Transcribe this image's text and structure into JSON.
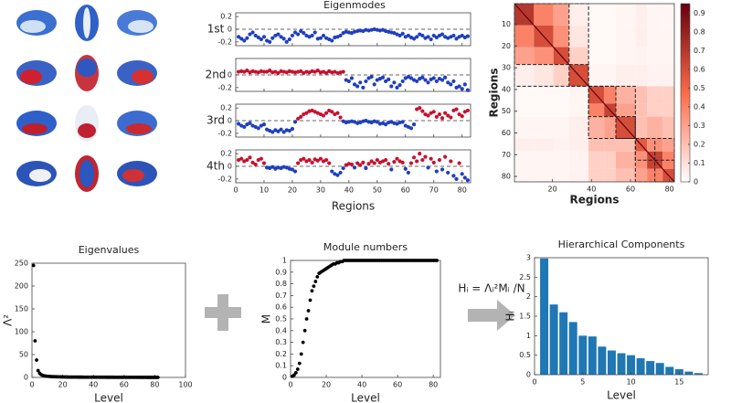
{
  "chart_data": [
    {
      "type": "eigenmodes",
      "title": "Eigenmodes",
      "xlabel": "Regions",
      "x": [
        1,
        2,
        3,
        4,
        5,
        6,
        7,
        8,
        9,
        10,
        11,
        12,
        13,
        14,
        15,
        16,
        17,
        18,
        19,
        20,
        21,
        22,
        23,
        24,
        25,
        26,
        27,
        28,
        29,
        30,
        31,
        32,
        33,
        34,
        35,
        36,
        37,
        38,
        39,
        40,
        41,
        42,
        43,
        44,
        45,
        46,
        47,
        48,
        49,
        50,
        51,
        52,
        53,
        54,
        55,
        56,
        57,
        58,
        59,
        60,
        61,
        62,
        63,
        64,
        65,
        66,
        67,
        68,
        69,
        70,
        71,
        72,
        73,
        74,
        75,
        76,
        77,
        78,
        79,
        80,
        81,
        82
      ],
      "xlim": [
        0,
        83
      ],
      "xticks": [
        0,
        10,
        20,
        30,
        40,
        50,
        60,
        70,
        80
      ],
      "ylim": [
        -0.26,
        0.26
      ],
      "positive_color": "#c8102e",
      "negative_color": "#1f3fbf",
      "zero_line": true,
      "series": [
        {
          "name": "1st",
          "yticks": [
            -0.2,
            0,
            0.2
          ],
          "values": [
            -0.12,
            -0.15,
            -0.18,
            -0.14,
            -0.08,
            -0.05,
            -0.1,
            -0.13,
            -0.16,
            -0.12,
            -0.18,
            -0.2,
            -0.14,
            -0.1,
            -0.08,
            -0.12,
            -0.15,
            -0.2,
            -0.16,
            -0.1,
            -0.05,
            -0.08,
            -0.03,
            -0.06,
            -0.1,
            -0.12,
            -0.1,
            -0.05,
            -0.15,
            -0.14,
            -0.1,
            -0.14,
            -0.16,
            -0.18,
            -0.13,
            -0.12,
            -0.1,
            -0.06,
            -0.04,
            -0.05,
            -0.06,
            -0.04,
            -0.03,
            -0.02,
            -0.03,
            -0.01,
            -0.02,
            -0.01,
            0,
            -0.01,
            -0.02,
            -0.01,
            -0.03,
            -0.04,
            -0.05,
            -0.06,
            -0.08,
            -0.1,
            -0.07,
            -0.12,
            -0.1,
            -0.13,
            -0.15,
            -0.12,
            -0.08,
            -0.1,
            -0.14,
            -0.12,
            -0.16,
            -0.1,
            -0.13,
            -0.1,
            -0.08,
            -0.12,
            -0.14,
            -0.12,
            -0.1,
            -0.15,
            -0.12,
            -0.1,
            -0.13,
            -0.11
          ]
        },
        {
          "name": "2nd",
          "yticks": [
            -0.2,
            0
          ],
          "values": [
            0.05,
            0.06,
            0.05,
            0.07,
            0.04,
            0.06,
            0.05,
            0.04,
            0.06,
            0.05,
            0.05,
            0.07,
            0.04,
            0.05,
            0.03,
            0.06,
            0.05,
            0.04,
            0.06,
            0.05,
            0.04,
            0.05,
            0.06,
            0.03,
            0.05,
            0.04,
            0.06,
            0.05,
            0.07,
            0.04,
            0.05,
            0.03,
            0.06,
            0.04,
            0.05,
            0.03,
            0.04,
            0.05,
            -0.08,
            -0.1,
            -0.05,
            -0.15,
            -0.18,
            -0.12,
            -0.2,
            -0.1,
            -0.05,
            -0.03,
            -0.15,
            -0.08,
            -0.06,
            -0.04,
            -0.1,
            -0.07,
            -0.18,
            -0.12,
            -0.2,
            -0.16,
            -0.1,
            -0.05,
            -0.03,
            -0.05,
            -0.08,
            -0.1,
            -0.06,
            -0.04,
            -0.08,
            -0.12,
            -0.07,
            -0.05,
            -0.1,
            -0.06,
            -0.08,
            -0.04,
            -0.12,
            -0.15,
            -0.1,
            -0.2,
            -0.18,
            -0.22,
            -0.15,
            -0.24
          ]
        },
        {
          "name": "3rd",
          "yticks": [
            -0.2,
            0,
            0.2
          ],
          "values": [
            -0.05,
            -0.08,
            -0.1,
            -0.06,
            -0.04,
            -0.08,
            -0.1,
            -0.12,
            -0.08,
            -0.06,
            -0.14,
            -0.16,
            -0.18,
            -0.15,
            -0.17,
            -0.14,
            -0.18,
            -0.15,
            -0.16,
            -0.13,
            -0.02,
            0.03,
            0.06,
            0.1,
            0.12,
            0.15,
            0.16,
            0.14,
            0.12,
            0.1,
            0.08,
            0.12,
            0.16,
            0.14,
            0.1,
            0.12,
            0.05,
            -0.01,
            -0.03,
            -0.02,
            -0.01,
            -0.02,
            -0.04,
            -0.03,
            -0.01,
            0,
            -0.02,
            -0.03,
            -0.01,
            -0.02,
            -0.05,
            -0.04,
            -0.06,
            -0.03,
            -0.02,
            -0.04,
            -0.05,
            -0.03,
            -0.02,
            -0.08,
            -0.1,
            -0.12,
            -0.06,
            0.18,
            0.2,
            0.15,
            0.1,
            0.08,
            0.12,
            0.14,
            0.06,
            0.1,
            0.04,
            0.12,
            0.08,
            0.05,
            0.16,
            0.18,
            0.1,
            0.07,
            0.14,
            0.16
          ]
        },
        {
          "name": "4th",
          "yticks": [
            -0.2,
            0,
            0.2
          ],
          "values": [
            0.1,
            0.12,
            0.08,
            0.1,
            0.14,
            0.06,
            0.03,
            0.1,
            0.12,
            0.05,
            -0.02,
            -0.03,
            -0.01,
            -0.04,
            -0.02,
            -0.03,
            -0.01,
            -0.02,
            -0.04,
            -0.05,
            -0.08,
            0.05,
            0.1,
            0.12,
            0.08,
            0.1,
            0.06,
            0.11,
            0.09,
            0.12,
            0.08,
            0.1,
            0.05,
            -0.08,
            -0.12,
            -0.14,
            -0.1,
            -0.03,
            0.02,
            0.04,
            0.03,
            -0.02,
            0.05,
            0.02,
            0.06,
            -0.03,
            0.04,
            0.08,
            0.05,
            0.1,
            0.06,
            0.08,
            0.1,
            0.04,
            -0.05,
            0.07,
            0.12,
            0.08,
            0.06,
            -0.04,
            -0.1,
            0.05,
            0.14,
            0.08,
            0.2,
            0.1,
            0.15,
            -0.02,
            0.12,
            0.06,
            -0.08,
            0.1,
            -0.05,
            0.15,
            -0.1,
            0.08,
            -0.15,
            -0.2,
            0.05,
            -0.12,
            -0.18,
            -0.22
          ]
        }
      ]
    },
    {
      "type": "heatmap",
      "xlabel": "Regions",
      "ylabel": "Regions",
      "edges": [
        0.5,
        10.5,
        20.5,
        28.5,
        38.5,
        46.5,
        52.5,
        62.5,
        68.5,
        76.5,
        82.5
      ],
      "values": [
        [
          0.7,
          0.4,
          0.3,
          0.05,
          0.02,
          0.02,
          0.03,
          0.05,
          0.03,
          0.03
        ],
        [
          0.4,
          0.6,
          0.35,
          0.08,
          0.02,
          0.02,
          0.03,
          0.05,
          0.03,
          0.03
        ],
        [
          0.3,
          0.35,
          0.6,
          0.15,
          0.02,
          0.02,
          0.03,
          0.04,
          0.03,
          0.03
        ],
        [
          0.05,
          0.08,
          0.15,
          0.6,
          0.03,
          0.03,
          0.05,
          0.05,
          0.04,
          0.04
        ],
        [
          0.02,
          0.02,
          0.02,
          0.03,
          0.6,
          0.4,
          0.25,
          0.2,
          0.15,
          0.15
        ],
        [
          0.02,
          0.02,
          0.02,
          0.03,
          0.4,
          0.65,
          0.3,
          0.2,
          0.15,
          0.15
        ],
        [
          0.03,
          0.03,
          0.03,
          0.05,
          0.25,
          0.3,
          0.6,
          0.2,
          0.25,
          0.2
        ],
        [
          0.05,
          0.05,
          0.04,
          0.05,
          0.2,
          0.2,
          0.2,
          0.55,
          0.35,
          0.3
        ],
        [
          0.03,
          0.03,
          0.03,
          0.04,
          0.15,
          0.15,
          0.25,
          0.35,
          0.65,
          0.4
        ],
        [
          0.03,
          0.03,
          0.03,
          0.04,
          0.15,
          0.15,
          0.2,
          0.3,
          0.4,
          0.6
        ]
      ],
      "module_boxes": [
        [
          0.5,
          38.5
        ],
        [
          0.5,
          28.5
        ],
        [
          28.5,
          38.5
        ],
        [
          38.5,
          62.5
        ],
        [
          38.5,
          52.5
        ],
        [
          52.5,
          62.5
        ],
        [
          62.5,
          82.5
        ],
        [
          62.5,
          72.5
        ],
        [
          72.5,
          82.5
        ]
      ],
      "xlim": [
        0.5,
        82.5
      ],
      "ylim": [
        0.5,
        82.5
      ],
      "xticks": [
        20,
        40,
        60,
        80
      ],
      "yticks": [
        10,
        20,
        30,
        40,
        50,
        60,
        70,
        80
      ],
      "clim": [
        0,
        0.95
      ],
      "cticks": [
        0,
        0.1,
        0.2,
        0.3,
        0.4,
        0.5,
        0.6,
        0.7,
        0.8,
        0.9
      ],
      "colors": [
        "#ffffff",
        "#fb6a4a",
        "#67000d"
      ]
    },
    {
      "type": "scatter",
      "title": "Eigenvalues",
      "xlabel": "Level",
      "ylabel": "Λ²",
      "color": "#000000",
      "x": [
        1,
        2,
        3,
        4,
        5,
        6,
        7,
        8,
        9,
        10,
        11,
        12,
        13,
        14,
        15,
        16,
        17,
        18,
        19,
        20,
        21,
        22,
        23,
        24,
        25,
        26,
        27,
        28,
        29,
        30,
        31,
        32,
        33,
        34,
        35,
        36,
        37,
        38,
        39,
        40,
        41,
        42,
        43,
        44,
        45,
        46,
        47,
        48,
        49,
        50,
        51,
        52,
        53,
        54,
        55,
        56,
        57,
        58,
        59,
        60,
        61,
        62,
        63,
        64,
        65,
        66,
        67,
        68,
        69,
        70,
        71,
        72,
        73,
        74,
        75,
        76,
        77,
        78,
        79,
        80,
        81,
        82
      ],
      "values": [
        245,
        80,
        38,
        15,
        9,
        6,
        4.5,
        3.5,
        3,
        2.5,
        2.2,
        2,
        1.8,
        1.6,
        1.5,
        1.4,
        1.3,
        1.2,
        1.1,
        1,
        0.95,
        0.9,
        0.85,
        0.8,
        0.78,
        0.75,
        0.72,
        0.7,
        0.68,
        0.65,
        0.62,
        0.6,
        0.58,
        0.56,
        0.55,
        0.53,
        0.52,
        0.5,
        0.48,
        0.47,
        0.46,
        0.45,
        0.44,
        0.42,
        0.41,
        0.4,
        0.39,
        0.38,
        0.37,
        0.36,
        0.35,
        0.34,
        0.33,
        0.32,
        0.31,
        0.3,
        0.29,
        0.28,
        0.27,
        0.26,
        0.25,
        0.24,
        0.23,
        0.22,
        0.21,
        0.2,
        0.19,
        0.18,
        0.17,
        0.16,
        0.15,
        0.14,
        0.14,
        0.13,
        0.13,
        0.12,
        0.12,
        0.11,
        0.11,
        0.1,
        0.1,
        0.1
      ],
      "xlim": [
        0,
        100
      ],
      "xticks": [
        0,
        20,
        40,
        60,
        80,
        100
      ],
      "ylim": [
        0,
        250
      ],
      "yticks": [
        0,
        50,
        100,
        150,
        200,
        250
      ]
    },
    {
      "type": "scatter",
      "title": "Module numbers",
      "xlabel": "Level",
      "ylabel": "M",
      "color": "#000000",
      "x": [
        1,
        2,
        3,
        4,
        5,
        6,
        7,
        8,
        9,
        10,
        11,
        12,
        13,
        14,
        15,
        16,
        17,
        18,
        19,
        20,
        21,
        22,
        23,
        24,
        25,
        26,
        27,
        28,
        29,
        30,
        31,
        32,
        33,
        34,
        35,
        36,
        37,
        38,
        39,
        40,
        41,
        42,
        43,
        44,
        45,
        46,
        47,
        48,
        49,
        50,
        51,
        52,
        53,
        54,
        55,
        56,
        57,
        58,
        59,
        60,
        61,
        62,
        63,
        64,
        65,
        66,
        67,
        68,
        69,
        70,
        71,
        72,
        73,
        74,
        75,
        76,
        77,
        78,
        79,
        80,
        81,
        82
      ],
      "values": [
        0.01,
        0.02,
        0.04,
        0.07,
        0.12,
        0.2,
        0.3,
        0.4,
        0.5,
        0.57,
        0.66,
        0.74,
        0.78,
        0.82,
        0.86,
        0.89,
        0.9,
        0.91,
        0.92,
        0.93,
        0.94,
        0.95,
        0.96,
        0.97,
        0.97,
        0.98,
        0.98,
        0.99,
        0.99,
        1,
        1,
        1,
        1,
        1,
        1,
        1,
        1,
        1,
        1,
        1,
        1,
        1,
        1,
        1,
        1,
        1,
        1,
        1,
        1,
        1,
        1,
        1,
        1,
        1,
        1,
        1,
        1,
        1,
        1,
        1,
        1,
        1,
        1,
        1,
        1,
        1,
        1,
        1,
        1,
        1,
        1,
        1,
        1,
        1,
        1,
        1,
        1,
        1,
        1,
        1,
        1,
        1
      ],
      "xlim": [
        0,
        84
      ],
      "xticks": [
        0,
        20,
        40,
        60,
        80
      ],
      "ylim": [
        0,
        1
      ],
      "yticks": [
        0,
        0.1,
        0.2,
        0.3,
        0.4,
        0.5,
        0.6,
        0.7,
        0.8,
        0.9,
        1
      ]
    },
    {
      "type": "bar",
      "title": "Hierarchical Components",
      "xlabel": "Level",
      "ylabel": "Hᵢ",
      "color": "#1f77b4",
      "x": [
        1,
        2,
        3,
        4,
        5,
        6,
        7,
        8,
        9,
        10,
        11,
        12,
        13,
        14,
        15,
        16,
        17
      ],
      "values": [
        2.98,
        1.8,
        1.6,
        1.35,
        1.0,
        0.98,
        0.72,
        0.62,
        0.55,
        0.5,
        0.42,
        0.35,
        0.3,
        0.2,
        0.14,
        0.08,
        0.04
      ],
      "xlim": [
        0,
        18
      ],
      "xticks": [
        0,
        5,
        10,
        15
      ],
      "ylim": [
        0,
        3
      ],
      "yticks": [
        0,
        0.5,
        1,
        1.5,
        2,
        2.5,
        3
      ]
    }
  ],
  "formula": "Hᵢ = Λᵢ²Mᵢ /N"
}
